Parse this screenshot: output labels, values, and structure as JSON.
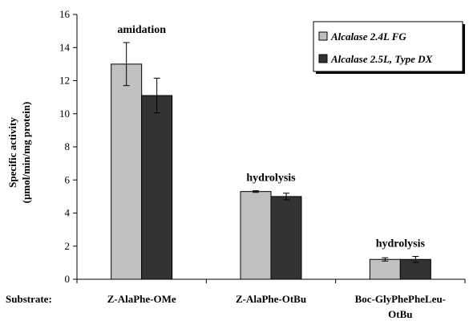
{
  "chart_data": {
    "type": "bar",
    "ylabel_line1": "Specific activity",
    "ylabel_line2": "(µmol/min/mg protein)",
    "ylim": [
      0,
      16
    ],
    "yticks": [
      0,
      2,
      4,
      6,
      8,
      10,
      12,
      14,
      16
    ],
    "grid": false,
    "legend_position": "top-right",
    "x_row_label": "Substrate:",
    "categories": [
      [
        "Z-AlaPhe-OMe"
      ],
      [
        "Z-AlaPhe-OtBu"
      ],
      [
        "Boc-GlyPhePheLeu-",
        "OtBu"
      ]
    ],
    "annotations": [
      "amidation",
      "hydrolysis",
      "hydrolysis"
    ],
    "series": [
      {
        "name": "Alcalase 2.4L FG",
        "color": "#c0c0c0",
        "values": [
          13.0,
          5.3,
          1.2
        ],
        "errors": [
          1.3,
          0.05,
          0.1
        ]
      },
      {
        "name": "Alcalase 2.5L, Type DX",
        "color": "#333333",
        "values": [
          11.1,
          5.0,
          1.2
        ],
        "errors": [
          1.05,
          0.2,
          0.18
        ]
      }
    ]
  }
}
